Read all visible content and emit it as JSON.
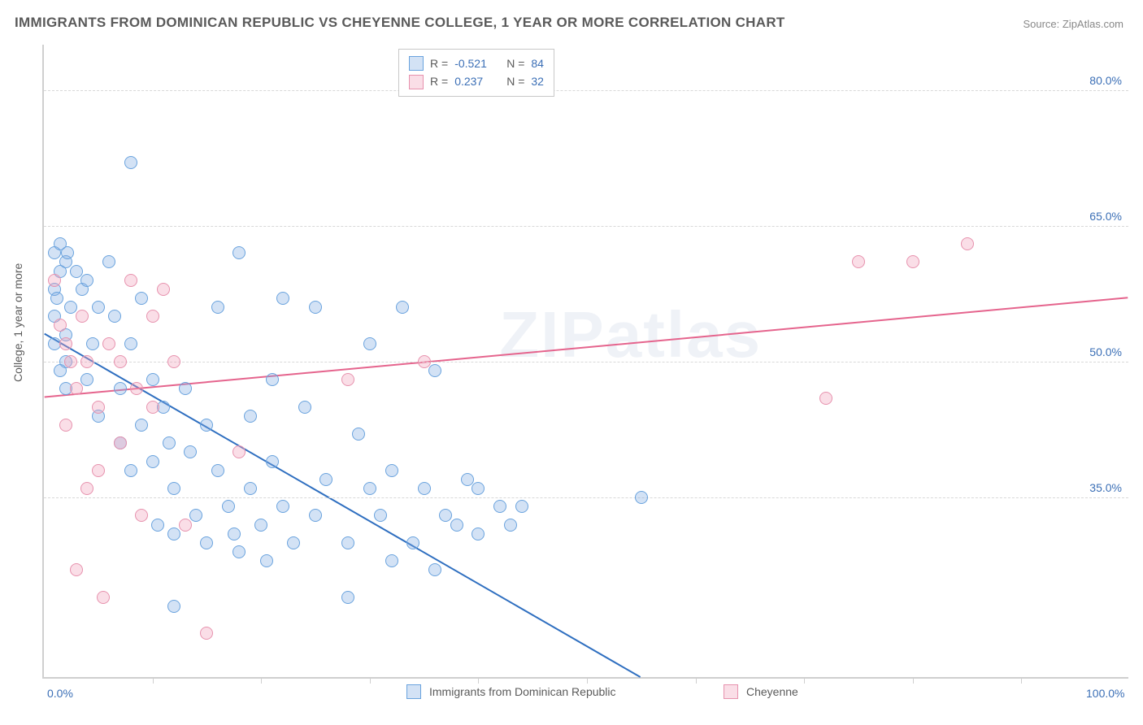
{
  "title": "IMMIGRANTS FROM DOMINICAN REPUBLIC VS CHEYENNE COLLEGE, 1 YEAR OR MORE CORRELATION CHART",
  "source": "Source: ZipAtlas.com",
  "watermark": "ZIPatlas",
  "chart": {
    "type": "scatter",
    "background_color": "#ffffff",
    "grid_color": "#d8d8d8",
    "axis_color": "#cfcfcf",
    "label_color": "#3b6fb6",
    "text_color": "#5a5a5a",
    "y_axis_title": "College, 1 year or more",
    "xlim": [
      0,
      100
    ],
    "ylim": [
      15,
      85
    ],
    "x_ticks_major": [
      0,
      100
    ],
    "x_ticks_minor": [
      10,
      20,
      30,
      40,
      50,
      60,
      70,
      80,
      90
    ],
    "x_tick_labels": {
      "0": "0.0%",
      "100": "100.0%"
    },
    "y_ticks": [
      35,
      50,
      65,
      80
    ],
    "y_tick_labels": {
      "35": "35.0%",
      "50": "50.0%",
      "65": "65.0%",
      "80": "80.0%"
    },
    "marker_radius": 8,
    "marker_border_width": 1.5,
    "line_width": 2,
    "series": [
      {
        "id": "dominican",
        "legend_label": "Immigrants from Dominican Republic",
        "fill": "rgba(128,173,226,0.35)",
        "stroke": "#6aa3de",
        "line_color": "#2f6fc0",
        "r_label": "R =",
        "r_value": "-0.521",
        "n_label": "N =",
        "n_value": "84",
        "trend": {
          "x1": 0,
          "y1": 53,
          "x2": 55,
          "y2": 15
        },
        "points": [
          [
            1,
            62
          ],
          [
            1,
            58
          ],
          [
            1.5,
            60
          ],
          [
            1,
            55
          ],
          [
            1.2,
            57
          ],
          [
            2,
            61
          ],
          [
            2,
            53
          ],
          [
            2.5,
            56
          ],
          [
            2,
            50
          ],
          [
            1,
            52
          ],
          [
            1.5,
            49
          ],
          [
            2,
            47
          ],
          [
            3,
            60
          ],
          [
            3.5,
            58
          ],
          [
            4,
            59
          ],
          [
            4,
            48
          ],
          [
            4.5,
            52
          ],
          [
            5,
            56
          ],
          [
            5,
            44
          ],
          [
            6,
            61
          ],
          [
            6.5,
            55
          ],
          [
            7,
            47
          ],
          [
            7,
            41
          ],
          [
            8,
            52
          ],
          [
            8,
            72
          ],
          [
            8,
            38
          ],
          [
            9,
            57
          ],
          [
            9,
            43
          ],
          [
            10,
            48
          ],
          [
            10,
            39
          ],
          [
            10.5,
            32
          ],
          [
            11,
            45
          ],
          [
            11.5,
            41
          ],
          [
            12,
            36
          ],
          [
            12,
            31
          ],
          [
            12,
            23
          ],
          [
            13,
            47
          ],
          [
            13.5,
            40
          ],
          [
            14,
            33
          ],
          [
            15,
            30
          ],
          [
            15,
            43
          ],
          [
            16,
            56
          ],
          [
            16,
            38
          ],
          [
            17,
            34
          ],
          [
            17.5,
            31
          ],
          [
            18,
            29
          ],
          [
            18,
            62
          ],
          [
            19,
            44
          ],
          [
            19,
            36
          ],
          [
            20,
            32
          ],
          [
            20.5,
            28
          ],
          [
            21,
            48
          ],
          [
            21,
            39
          ],
          [
            22,
            34
          ],
          [
            22,
            57
          ],
          [
            23,
            30
          ],
          [
            24,
            45
          ],
          [
            25,
            33
          ],
          [
            25,
            56
          ],
          [
            26,
            37
          ],
          [
            28,
            24
          ],
          [
            28,
            30
          ],
          [
            29,
            42
          ],
          [
            30,
            36
          ],
          [
            30,
            52
          ],
          [
            31,
            33
          ],
          [
            32,
            28
          ],
          [
            32,
            38
          ],
          [
            33,
            56
          ],
          [
            34,
            30
          ],
          [
            35,
            36
          ],
          [
            36,
            27
          ],
          [
            36,
            49
          ],
          [
            37,
            33
          ],
          [
            38,
            32
          ],
          [
            39,
            37
          ],
          [
            40,
            31
          ],
          [
            40,
            36
          ],
          [
            42,
            34
          ],
          [
            43,
            32
          ],
          [
            44,
            34
          ],
          [
            55,
            35
          ],
          [
            1.5,
            63
          ],
          [
            2.2,
            62
          ]
        ]
      },
      {
        "id": "cheyenne",
        "legend_label": "Cheyenne",
        "fill": "rgba(240,160,185,0.35)",
        "stroke": "#e792ae",
        "line_color": "#e5648d",
        "r_label": "R =",
        "r_value": "0.237",
        "n_label": "N =",
        "n_value": "32",
        "trend": {
          "x1": 0,
          "y1": 46,
          "x2": 100,
          "y2": 57
        },
        "points": [
          [
            1,
            59
          ],
          [
            1.5,
            54
          ],
          [
            2,
            52
          ],
          [
            2,
            43
          ],
          [
            2.5,
            50
          ],
          [
            3,
            47
          ],
          [
            3,
            27
          ],
          [
            3.5,
            55
          ],
          [
            4,
            36
          ],
          [
            4,
            50
          ],
          [
            5,
            45
          ],
          [
            5,
            38
          ],
          [
            5.5,
            24
          ],
          [
            6,
            52
          ],
          [
            7,
            50
          ],
          [
            7,
            41
          ],
          [
            8,
            59
          ],
          [
            8.5,
            47
          ],
          [
            9,
            33
          ],
          [
            10,
            55
          ],
          [
            10,
            45
          ],
          [
            11,
            58
          ],
          [
            12,
            50
          ],
          [
            13,
            32
          ],
          [
            15,
            20
          ],
          [
            18,
            40
          ],
          [
            28,
            48
          ],
          [
            35,
            50
          ],
          [
            72,
            46
          ],
          [
            75,
            61
          ],
          [
            80,
            61
          ],
          [
            85,
            63
          ]
        ]
      }
    ],
    "correlation_legend": {
      "value_color": "#3b6fb6",
      "label_color": "#5a5a5a"
    },
    "bottom_legend": {
      "items": [
        "dominican",
        "cheyenne"
      ]
    }
  }
}
